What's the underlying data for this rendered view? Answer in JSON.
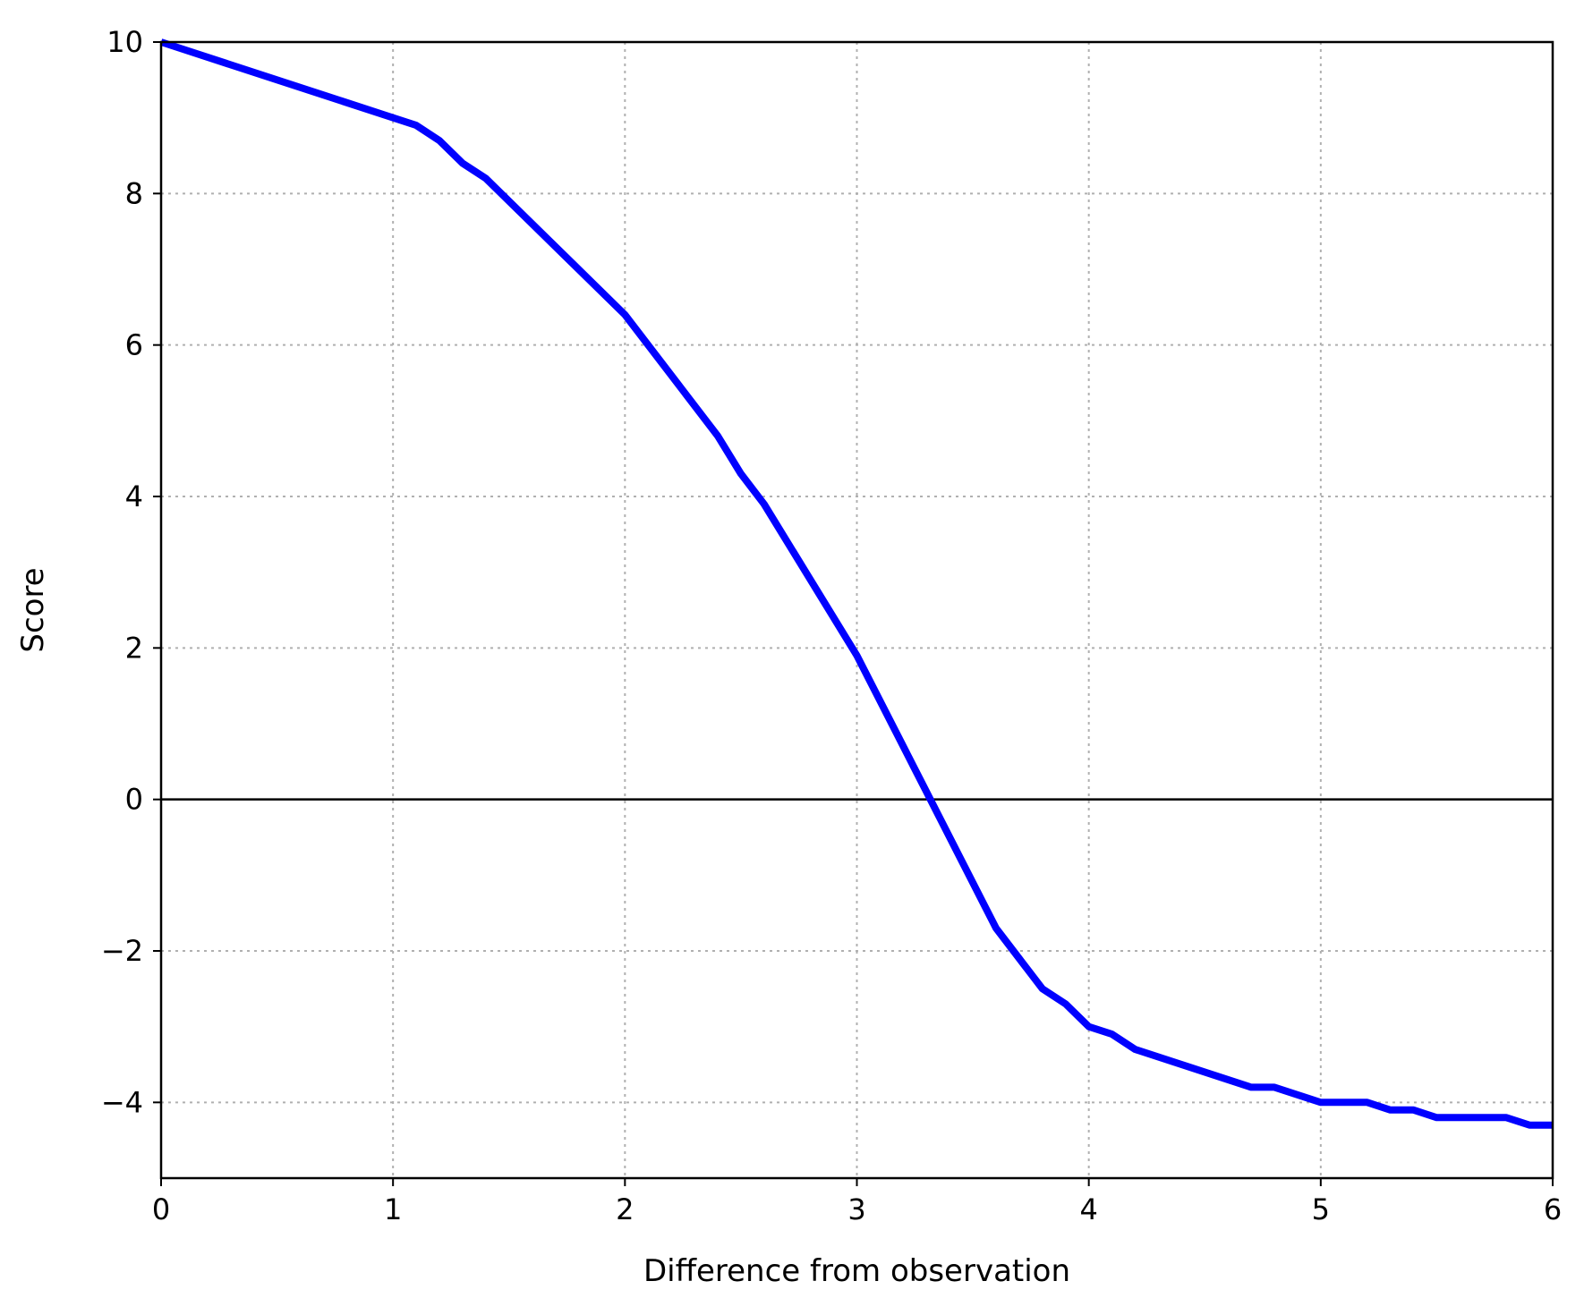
{
  "chart_data": {
    "type": "line",
    "title": "",
    "xlabel": "Difference from observation",
    "ylabel": "Score",
    "xlim": [
      0,
      6
    ],
    "ylim": [
      -5,
      10
    ],
    "xticks": [
      0,
      1,
      2,
      3,
      4,
      5,
      6
    ],
    "yticks": [
      -4,
      -2,
      0,
      2,
      4,
      6,
      8,
      10
    ],
    "xtick_labels": [
      "0",
      "1",
      "2",
      "3",
      "4",
      "5",
      "6"
    ],
    "ytick_labels": [
      "−4",
      "−2",
      "0",
      "2",
      "4",
      "6",
      "8",
      "10"
    ],
    "grid": true,
    "horizontal_reference_line": 0,
    "series": [
      {
        "color": "#0000ff",
        "x": [
          0,
          1.1,
          1.2,
          1.3,
          1.4,
          2.0,
          2.4,
          2.5,
          2.6,
          3.0,
          3.3,
          3.6,
          3.8,
          3.9,
          4.0,
          4.1,
          4.2,
          4.7,
          4.8,
          5.0,
          5.2,
          5.3,
          5.4,
          5.5,
          5.8,
          5.9,
          6.0
        ],
        "y": [
          10.0,
          8.9,
          8.7,
          8.4,
          8.2,
          6.4,
          4.8,
          4.3,
          3.9,
          1.9,
          0.1,
          -1.7,
          -2.5,
          -2.7,
          -3.0,
          -3.1,
          -3.3,
          -3.8,
          -3.8,
          -4.0,
          -4.0,
          -4.1,
          -4.1,
          -4.2,
          -4.2,
          -4.3,
          -4.3
        ]
      }
    ]
  }
}
